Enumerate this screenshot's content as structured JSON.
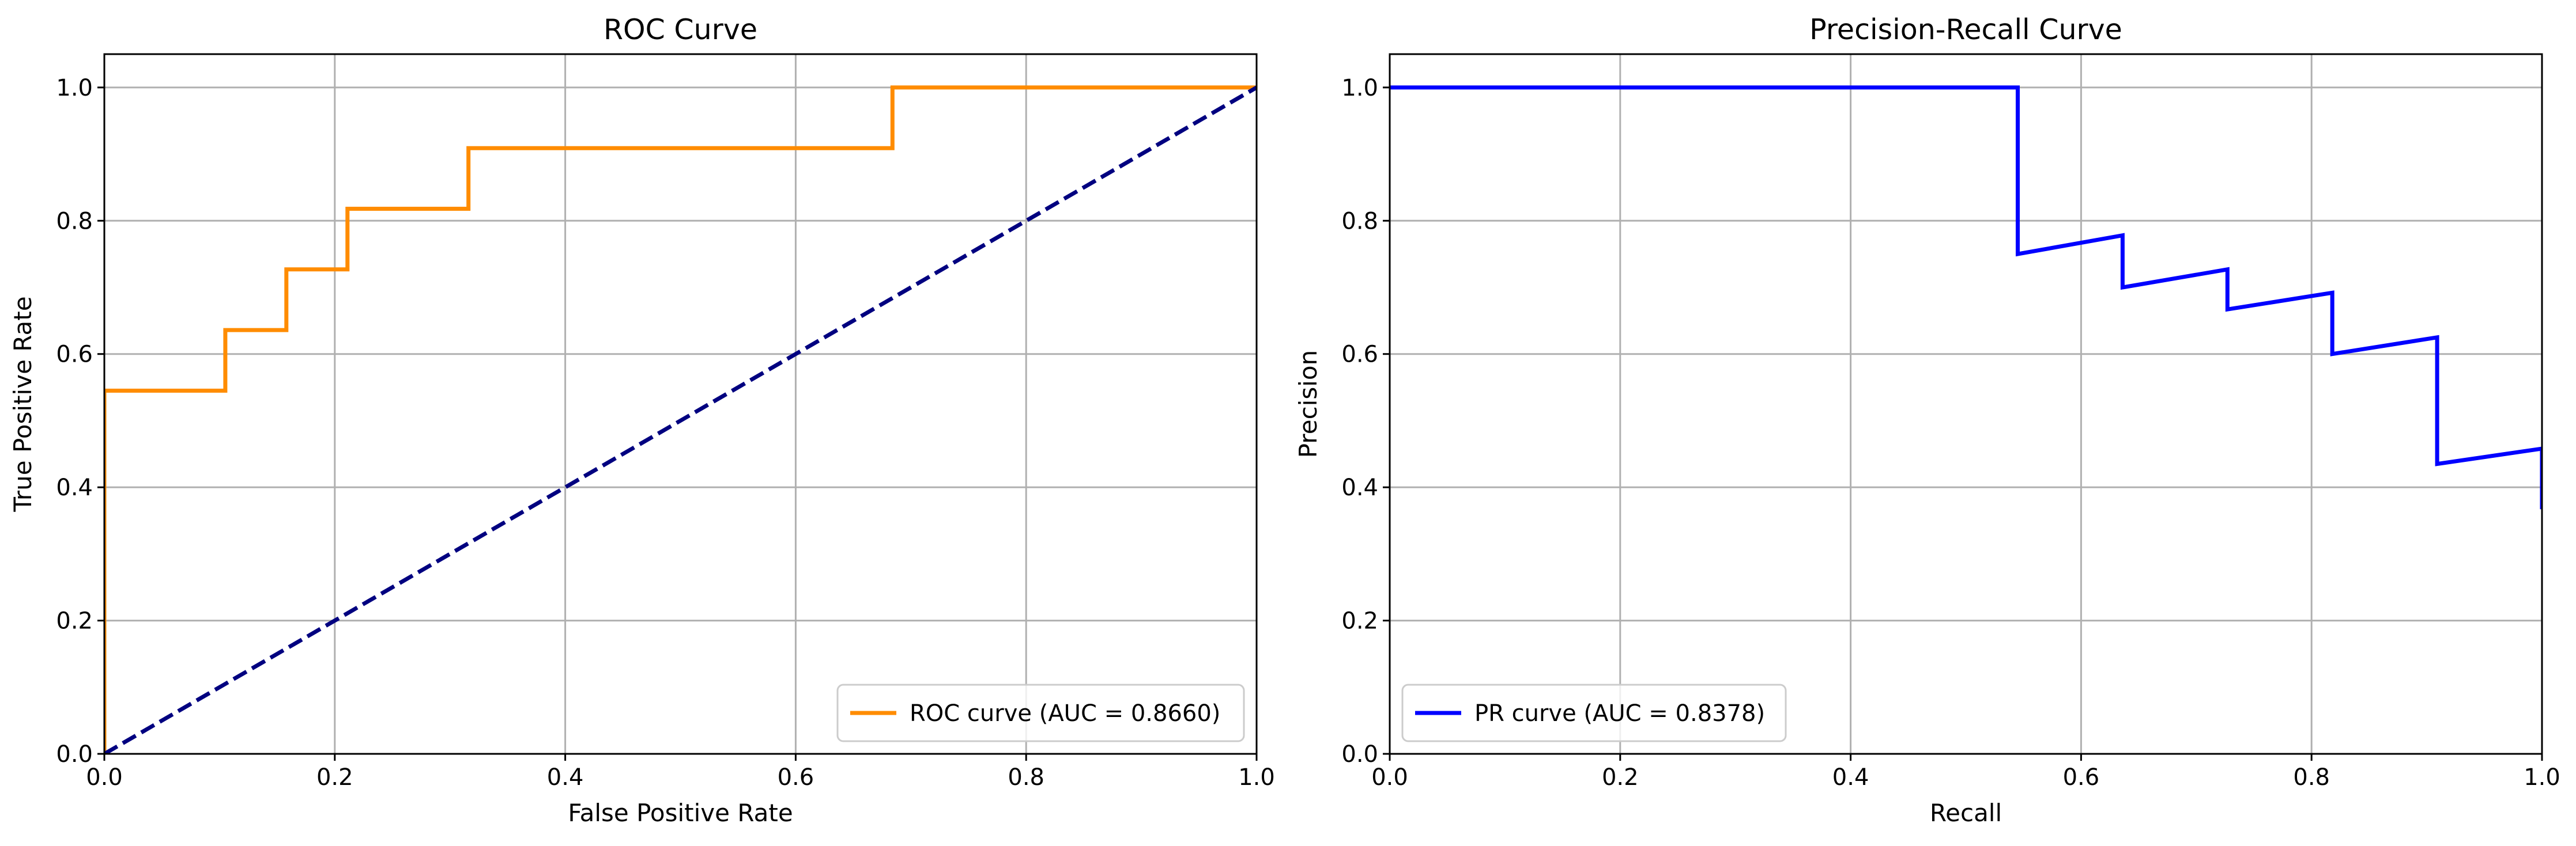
{
  "chart_data": [
    {
      "type": "line",
      "title": "ROC Curve",
      "xlabel": "False Positive Rate",
      "ylabel": "True Positive Rate",
      "xlim": [
        0.0,
        1.0
      ],
      "ylim": [
        0.0,
        1.05
      ],
      "xticks": [
        "0.0",
        "0.2",
        "0.4",
        "0.6",
        "0.8",
        "1.0"
      ],
      "yticks": [
        "0.0",
        "0.2",
        "0.4",
        "0.6",
        "0.8",
        "1.0"
      ],
      "grid": true,
      "legend_position": "lower-right",
      "series": [
        {
          "name": "ROC curve (AUC = 0.8660)",
          "color": "#ff8c00",
          "style": "solid",
          "x": [
            0.0,
            0.0,
            0.105,
            0.105,
            0.158,
            0.158,
            0.211,
            0.211,
            0.316,
            0.316,
            0.684,
            0.684,
            1.0
          ],
          "y": [
            0.0,
            0.545,
            0.545,
            0.636,
            0.636,
            0.727,
            0.727,
            0.818,
            0.818,
            0.909,
            0.909,
            1.0,
            1.0
          ]
        },
        {
          "color": "#000080",
          "style": "dashed",
          "x": [
            0.0,
            1.0
          ],
          "y": [
            0.0,
            1.0
          ]
        }
      ]
    },
    {
      "type": "line",
      "title": "Precision-Recall Curve",
      "xlabel": "Recall",
      "ylabel": "Precision",
      "xlim": [
        0.0,
        1.0
      ],
      "ylim": [
        0.0,
        1.05
      ],
      "xticks": [
        "0.0",
        "0.2",
        "0.4",
        "0.6",
        "0.8",
        "1.0"
      ],
      "yticks": [
        "0.0",
        "0.2",
        "0.4",
        "0.6",
        "0.8",
        "1.0"
      ],
      "grid": true,
      "legend_position": "lower-left",
      "series": [
        {
          "name": "PR curve (AUC = 0.8378)",
          "color": "#0000ff",
          "style": "solid",
          "x": [
            0.0,
            0.545,
            0.545,
            0.636,
            0.636,
            0.727,
            0.727,
            0.818,
            0.818,
            0.909,
            0.909,
            1.0,
            1.0
          ],
          "y": [
            1.0,
            1.0,
            0.75,
            0.778,
            0.7,
            0.727,
            0.667,
            0.692,
            0.6,
            0.625,
            0.435,
            0.458,
            0.367
          ]
        }
      ]
    }
  ]
}
